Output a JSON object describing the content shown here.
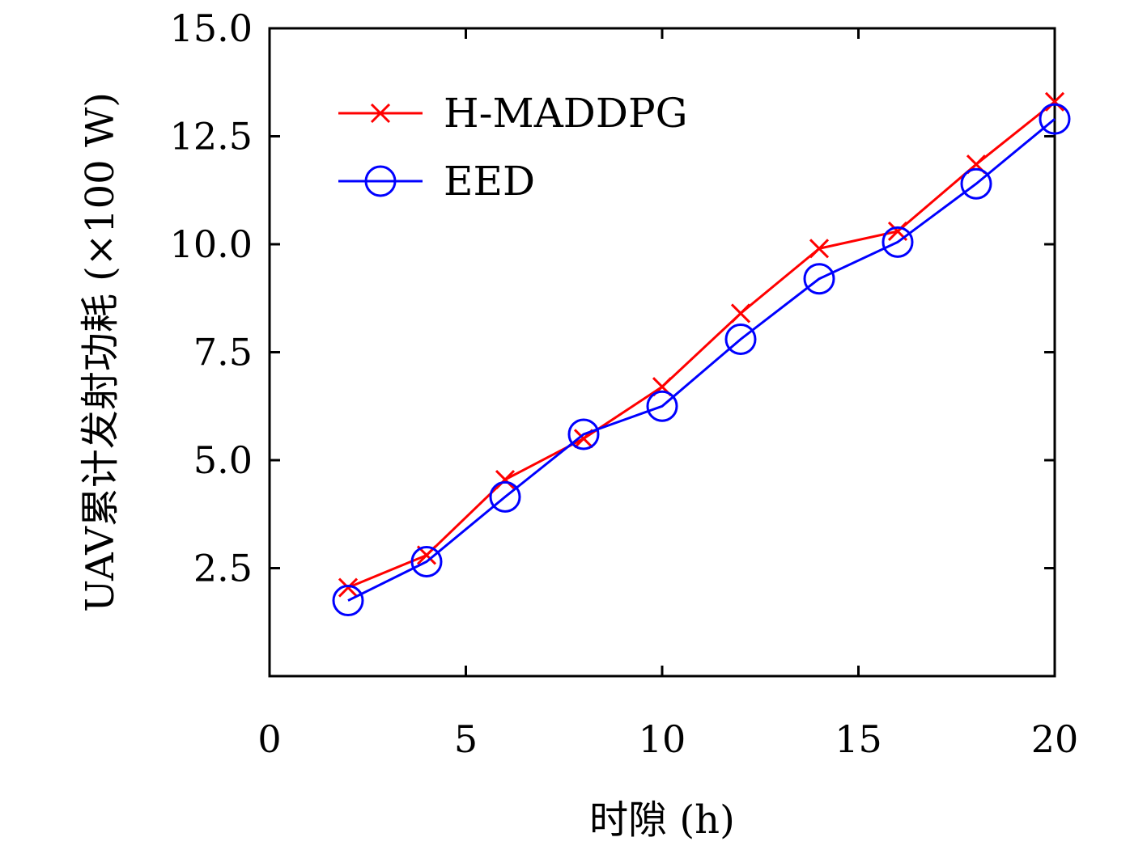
{
  "chart_data": {
    "type": "line",
    "xlabel": "时隙 (h)",
    "ylabel": "UAV累计发射功耗 (×100 W)",
    "xlim": [
      0,
      20
    ],
    "ylim": [
      0,
      15
    ],
    "x_ticks": [
      "0",
      "5",
      "10",
      "15",
      "20"
    ],
    "x_tick_values": [
      0,
      5,
      10,
      15,
      20
    ],
    "y_ticks": [
      "2.5",
      "5.0",
      "7.5",
      "10.0",
      "12.5",
      "15.0"
    ],
    "y_tick_values": [
      2.5,
      5.0,
      7.5,
      10.0,
      12.5,
      15.0
    ],
    "legend_position": "top-left",
    "grid": false,
    "series": [
      {
        "name": "H-MADDPG",
        "color": "#ff0000",
        "marker": "x",
        "x": [
          2,
          4,
          6,
          8,
          10,
          12,
          14,
          16,
          18,
          20
        ],
        "y": [
          2.05,
          2.8,
          4.55,
          5.5,
          6.7,
          8.4,
          9.9,
          10.3,
          11.85,
          13.3
        ]
      },
      {
        "name": "EED",
        "color": "#0000ff",
        "marker": "o",
        "x": [
          2,
          4,
          6,
          8,
          10,
          12,
          14,
          16,
          18,
          20
        ],
        "y": [
          1.75,
          2.65,
          4.15,
          5.6,
          6.25,
          7.8,
          9.2,
          10.05,
          11.4,
          12.9
        ]
      }
    ]
  }
}
